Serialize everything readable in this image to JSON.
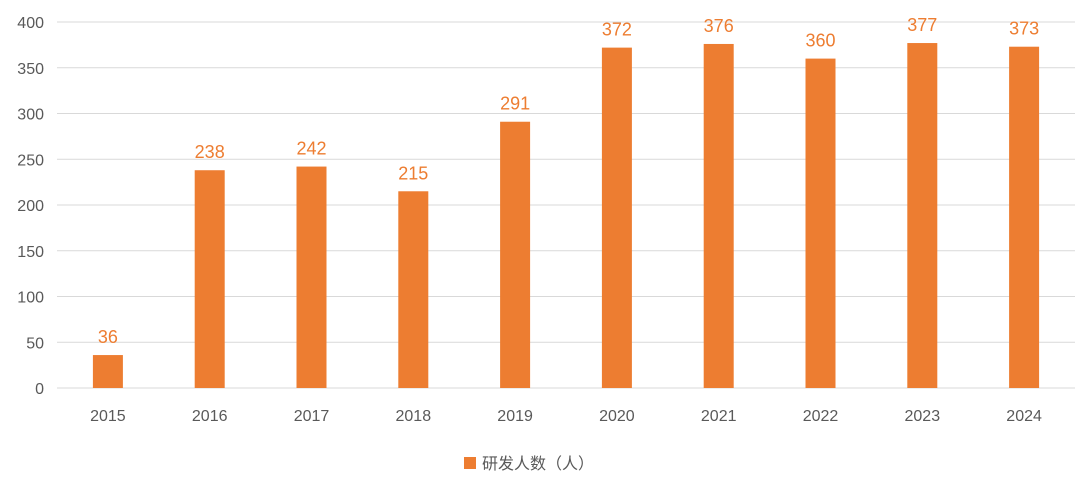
{
  "chart_data": {
    "type": "bar",
    "categories": [
      "2015",
      "2016",
      "2017",
      "2018",
      "2019",
      "2020",
      "2021",
      "2022",
      "2023",
      "2024"
    ],
    "series": [
      {
        "name": "研发人数（人）",
        "values": [
          36,
          238,
          242,
          215,
          291,
          372,
          376,
          360,
          377,
          373
        ],
        "color": "#ED7D31"
      }
    ],
    "ylim": [
      0,
      400
    ],
    "yticks": [
      0,
      50,
      100,
      150,
      200,
      250,
      300,
      350,
      400
    ],
    "grid": true,
    "legend_position": "bottom",
    "data_labels": true,
    "data_label_color": "#ED7D31"
  }
}
